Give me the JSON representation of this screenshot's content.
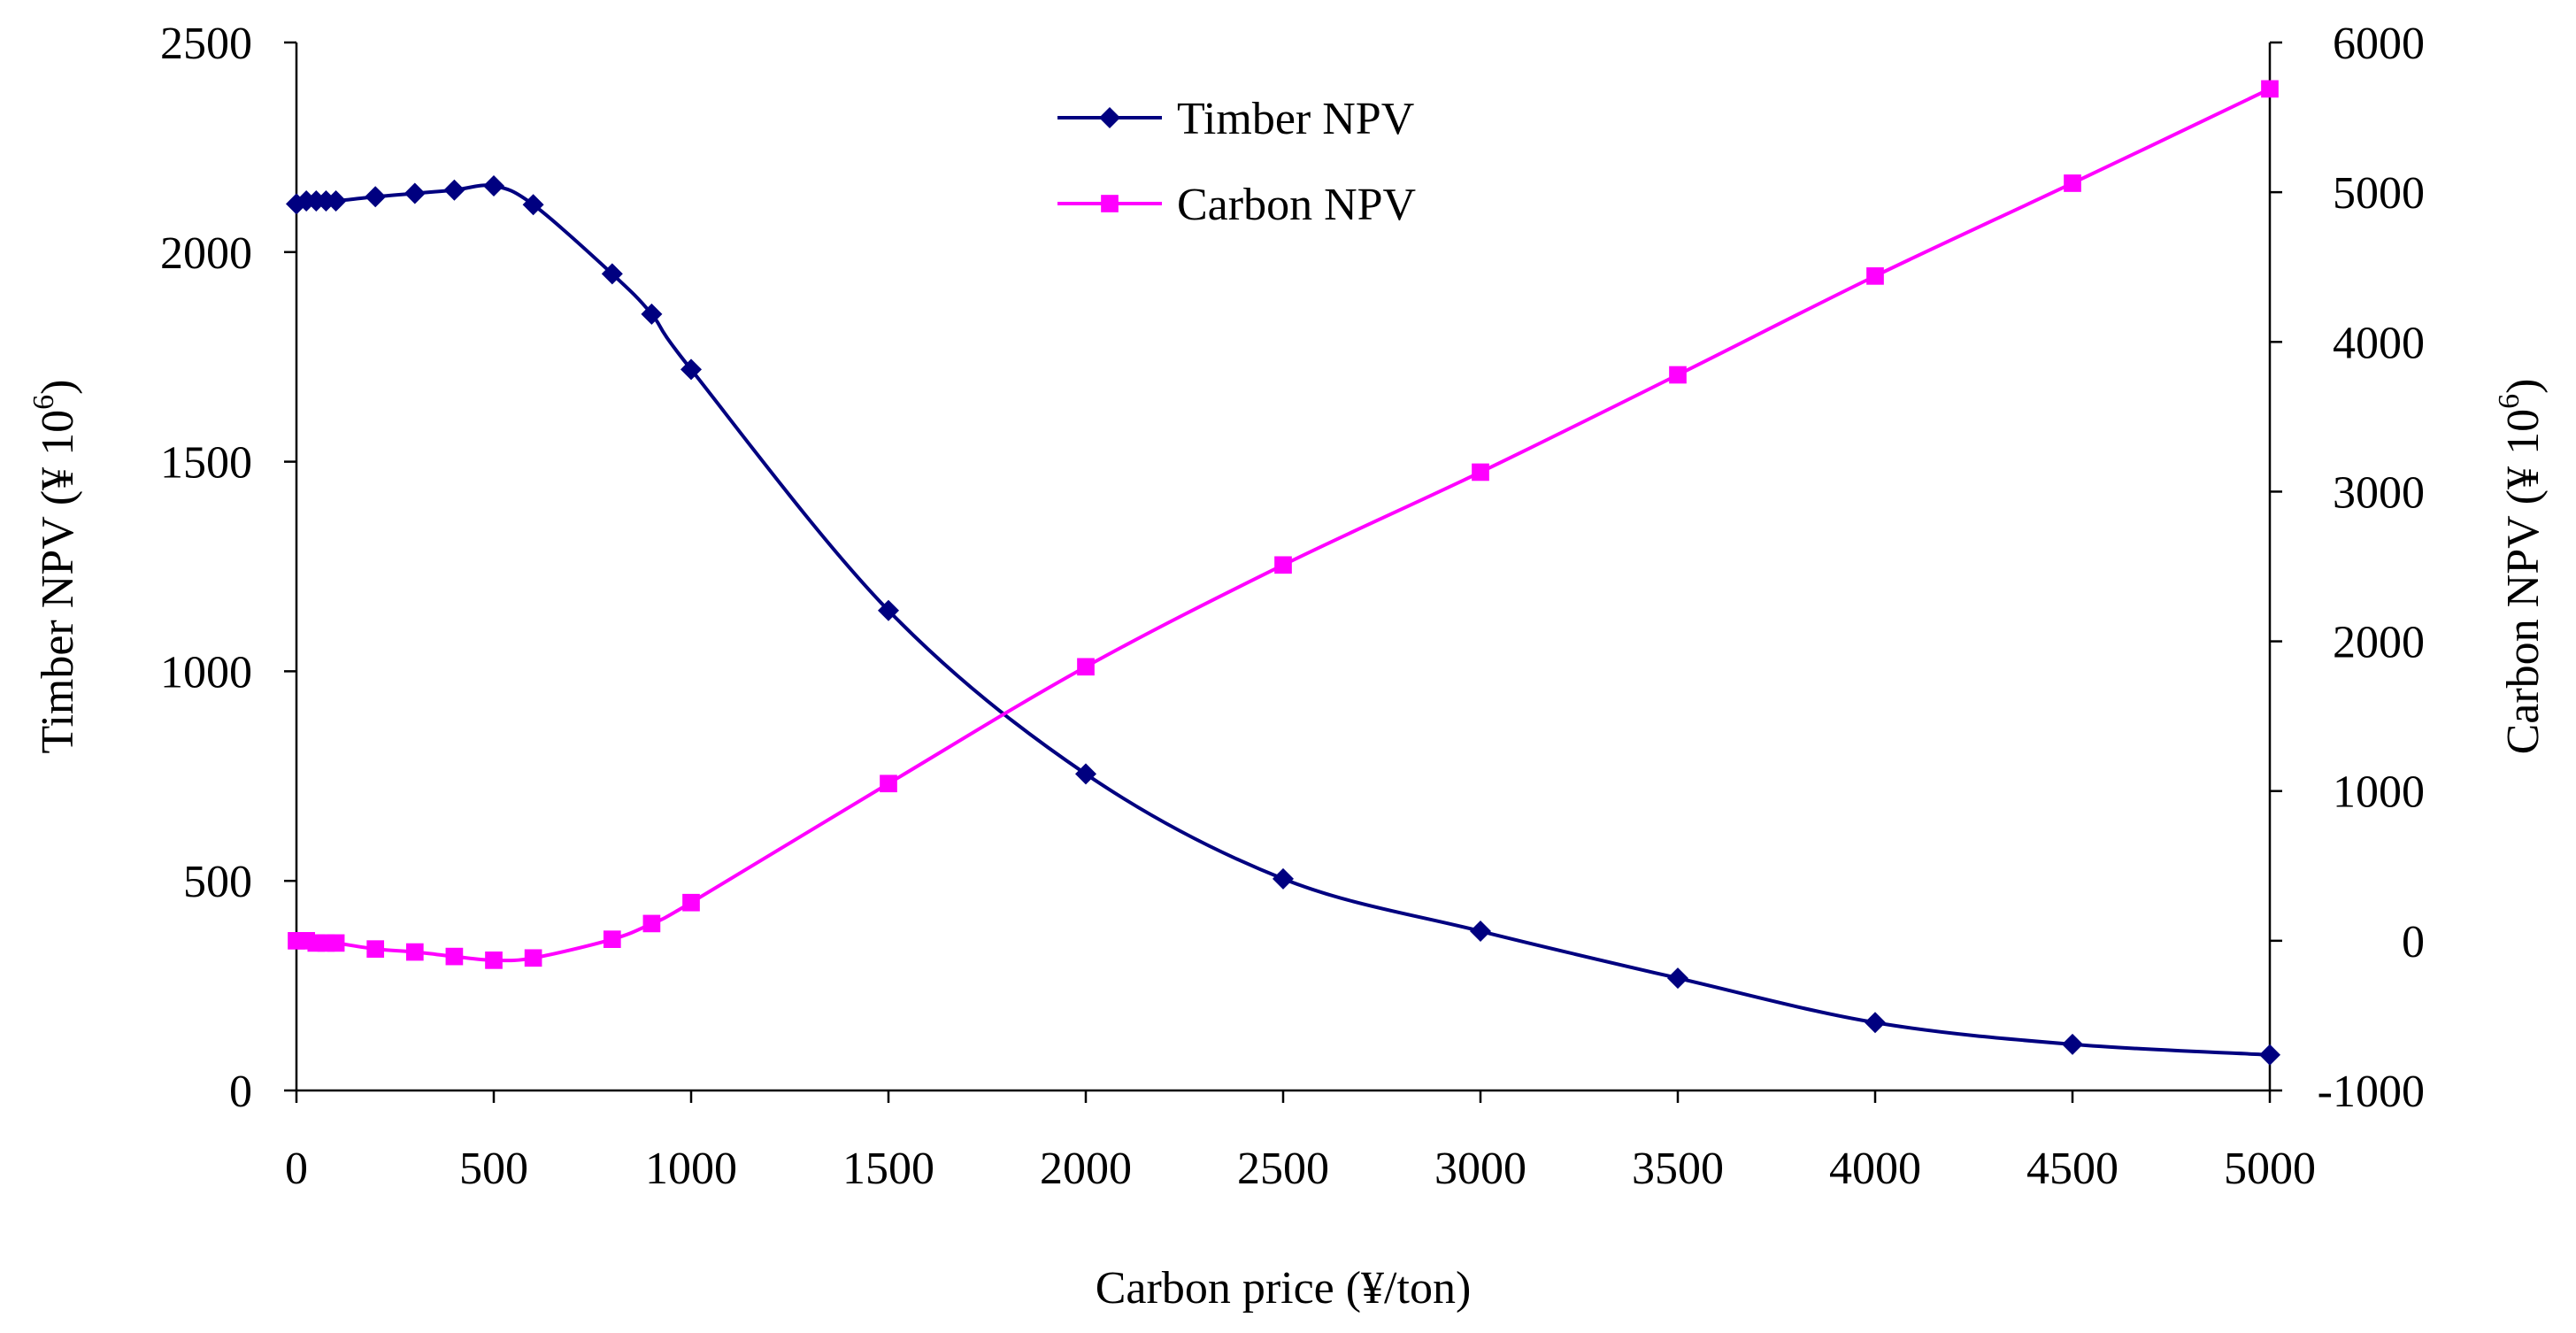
{
  "chart_data": {
    "type": "line",
    "title": "",
    "xlabel": "Carbon price (¥/ton)",
    "ylabel_left": "Timber NPV (¥ 10",
    "ylabel_left_exp": "6",
    "ylabel_left_close": ")",
    "ylabel_right": "Carbon NPV (¥ 10",
    "ylabel_right_exp": "6",
    "ylabel_right_close": ")",
    "xlim": [
      0,
      5000
    ],
    "ylim_left": [
      0,
      2500
    ],
    "ylim_right": [
      -1000,
      6000
    ],
    "x_ticks": [
      "0",
      "500",
      "1000",
      "1500",
      "2000",
      "2500",
      "3000",
      "3500",
      "4000",
      "4500",
      "5000"
    ],
    "y_left_ticks": [
      "0",
      "500",
      "1000",
      "1500",
      "2000",
      "2500"
    ],
    "y_right_ticks": [
      "-1000",
      "0",
      "1000",
      "2000",
      "3000",
      "4000",
      "5000",
      "6000"
    ],
    "legend_position": "top-center",
    "series": [
      {
        "name": "Timber NPV",
        "axis": "left",
        "color": "#000080",
        "marker": "diamond",
        "x": [
          0,
          25,
          50,
          75,
          100,
          200,
          300,
          400,
          500,
          600,
          800,
          900,
          1000,
          1500,
          2000,
          2500,
          3000,
          3500,
          4000,
          4500,
          5000
        ],
        "values": [
          2115,
          2122,
          2122,
          2122,
          2122,
          2132,
          2140,
          2148,
          2158,
          2113,
          1948,
          1852,
          1720,
          1145,
          755,
          505,
          380,
          268,
          162,
          110,
          85
        ]
      },
      {
        "name": "Carbon NPV",
        "axis": "right",
        "color": "#FF00FF",
        "marker": "square",
        "x": [
          0,
          25,
          50,
          75,
          100,
          200,
          300,
          400,
          500,
          600,
          800,
          900,
          1000,
          1500,
          2000,
          2500,
          3000,
          3500,
          4000,
          4500,
          5000
        ],
        "values": [
          0,
          0,
          -15,
          -15,
          -15,
          -55,
          -75,
          -105,
          -130,
          -115,
          10,
          115,
          255,
          1050,
          1830,
          2510,
          3130,
          3780,
          4440,
          5060,
          5690
        ]
      }
    ]
  }
}
